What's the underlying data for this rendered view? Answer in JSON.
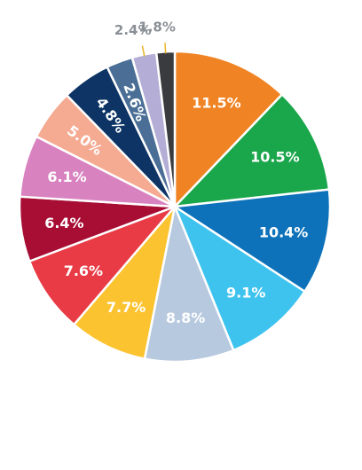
{
  "chart_data": {
    "type": "pie",
    "title": "",
    "legend": "none",
    "slices": [
      {
        "label": "11.5%",
        "value": 11.5,
        "color": "#F08424"
      },
      {
        "label": "10.5%",
        "value": 10.5,
        "color": "#1AA64A"
      },
      {
        "label": "10.4%",
        "value": 10.4,
        "color": "#0E72BA"
      },
      {
        "label": "9.1%",
        "value": 9.1,
        "color": "#3EC3EE"
      },
      {
        "label": "8.8%",
        "value": 8.8,
        "color": "#B7C9DF"
      },
      {
        "label": "7.7%",
        "value": 7.7,
        "color": "#FCC330"
      },
      {
        "label": "7.6%",
        "value": 7.6,
        "color": "#E83B45"
      },
      {
        "label": "6.4%",
        "value": 6.4,
        "color": "#A80E34"
      },
      {
        "label": "6.1%",
        "value": 6.1,
        "color": "#D883C0"
      },
      {
        "label": "5.0%",
        "value": 5.0,
        "color": "#F5AA92"
      },
      {
        "label": "4.8%",
        "value": 4.8,
        "color": "#0D3464"
      },
      {
        "label": "2.6%",
        "value": 2.6,
        "color": "#4A6E95"
      },
      {
        "label": "2.4%",
        "value": 2.4,
        "color": "#B4AED6"
      },
      {
        "label": "1.8%",
        "value": 1.8,
        "color": "#3A3B3E"
      }
    ],
    "outside_labels": [
      "2.4%",
      "1.8%"
    ],
    "leader_color": "#E8B427"
  }
}
